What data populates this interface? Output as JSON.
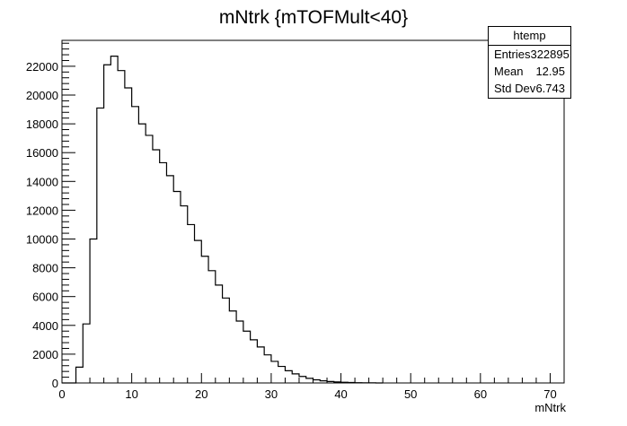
{
  "chart_data": {
    "type": "bar",
    "title": "mNtrk {mTOFMult<40}",
    "xlabel": "mNtrk",
    "ylabel": "",
    "xlim": [
      0,
      72
    ],
    "ylim": [
      0,
      23800
    ],
    "bin_edges_start": 0,
    "bin_width": 1,
    "values": [
      0,
      0,
      1100,
      4100,
      10000,
      19100,
      22100,
      22700,
      21700,
      20500,
      19200,
      18000,
      17200,
      16200,
      15300,
      14400,
      13300,
      12300,
      11000,
      9900,
      8800,
      7800,
      6800,
      5900,
      5000,
      4300,
      3600,
      3000,
      2500,
      1950,
      1500,
      1150,
      850,
      630,
      450,
      320,
      220,
      150,
      100,
      70,
      45,
      30,
      20,
      12,
      8,
      0
    ],
    "x_ticks": [
      0,
      10,
      20,
      30,
      40,
      50,
      60,
      70
    ],
    "y_ticks": [
      0,
      2000,
      4000,
      6000,
      8000,
      10000,
      12000,
      14000,
      16000,
      18000,
      20000,
      22000
    ],
    "grid": false,
    "stats_box": {
      "name": "htemp",
      "rows": [
        {
          "label": "Entries",
          "value": "322895"
        },
        {
          "label": "Mean",
          "value": "12.95"
        },
        {
          "label": "Std Dev",
          "value": "6.743"
        }
      ]
    }
  }
}
